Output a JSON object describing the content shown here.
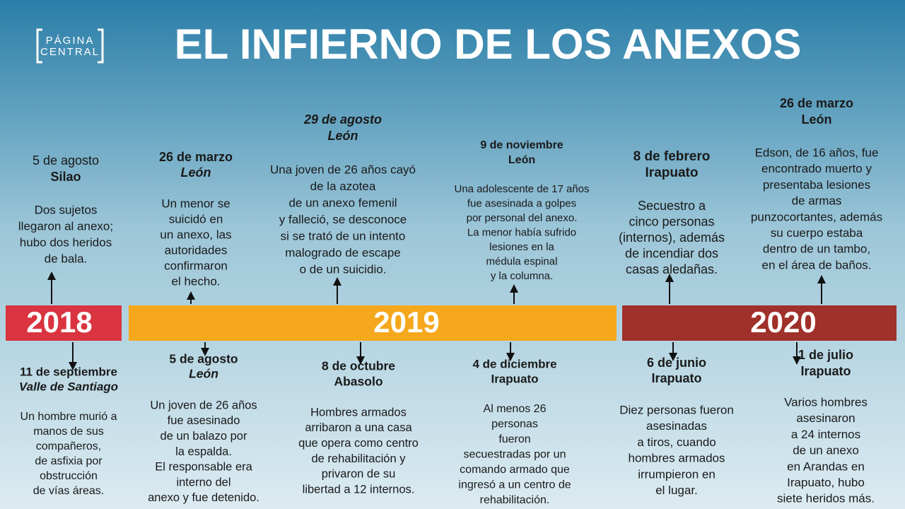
{
  "header": {
    "logo": [
      "PÁGINA",
      "CENTRAL"
    ],
    "title": "EL INFIERNO DE LOS ANEXOS"
  },
  "years": [
    "2018",
    "2019",
    "2020"
  ],
  "top_events": [
    {
      "date": "5 de agosto",
      "place": "Silao",
      "lines": [
        "Dos sujetos",
        "llegaron al anexo;",
        "hubo dos heridos",
        "de bala."
      ]
    },
    {
      "date": "26 de marzo",
      "place": "León",
      "lines": [
        "Un menor se",
        "suicidó en",
        "un anexo, las",
        "autoridades",
        "confirmaron",
        "el hecho."
      ]
    },
    {
      "date": "29 de agosto",
      "place": "León",
      "lines": [
        "Una joven de 26 años cayó",
        "de la azotea",
        "de un anexo femenil",
        "y falleció, se desconoce",
        "si se trató de un intento",
        "malogrado de escape",
        "o de un suicidio."
      ]
    },
    {
      "date": "9 de noviembre",
      "place": "León",
      "lines": [
        "Una adolescente de 17 años",
        "fue asesinada a golpes",
        "por personal del anexo.",
        "La menor había sufrido",
        "lesiones en la",
        "médula espinal",
        "y la columna."
      ]
    },
    {
      "date": "8 de febrero",
      "place": "Irapuato",
      "lines": [
        "Secuestro a",
        "cinco personas",
        "(internos), además",
        "de incendiar dos",
        "casas aledañas."
      ]
    },
    {
      "date": "26 de marzo",
      "place": "León",
      "lines": [
        "Edson, de 16 años, fue",
        "encontrado muerto y",
        "presentaba lesiones",
        "de armas",
        "punzocortantes, además",
        "su cuerpo estaba",
        "dentro de un tambo,",
        "en el área de baños."
      ]
    }
  ],
  "bottom_events": [
    {
      "date": "11 de septiembre",
      "place": "Valle de Santiago",
      "lines": [
        "Un hombre murió a",
        "manos de sus",
        "compañeros,",
        "de asfixia por",
        "obstrucción",
        "de vías áreas."
      ]
    },
    {
      "date": "5 de agosto",
      "place": "León",
      "lines": [
        "Un joven de 26 años",
        "fue asesinado",
        "de un balazo por",
        "la espalda.",
        "El responsable era",
        "interno del",
        "anexo y fue detenido."
      ]
    },
    {
      "date": "8 de octubre",
      "place": "Abasolo",
      "lines": [
        "Hombres armados",
        "arribaron a una casa",
        "que opera como centro",
        "de rehabilitación y",
        "privaron de su",
        "libertad a 12 internos."
      ]
    },
    {
      "date": "4 de diciembre",
      "place": "Irapuato",
      "lines": [
        "Al menos 26",
        "personas",
        "fueron",
        "secuestradas por un",
        "comando armado que",
        "ingresó a un centro de",
        "rehabilitación."
      ]
    },
    {
      "date": "6 de junio",
      "place": "Irapuato",
      "lines": [
        "Diez personas fueron",
        "asesinadas",
        "a tiros, cuando",
        "hombres armados",
        "irrumpieron en",
        "el lugar."
      ]
    },
    {
      "date": "1 de julio",
      "place": "Irapuato",
      "lines": [
        "Varios hombres",
        "asesinaron",
        "a 24 internos",
        "de un anexo",
        "en Arandas en",
        "Irapuato, hubo",
        "siete heridos más."
      ]
    }
  ]
}
